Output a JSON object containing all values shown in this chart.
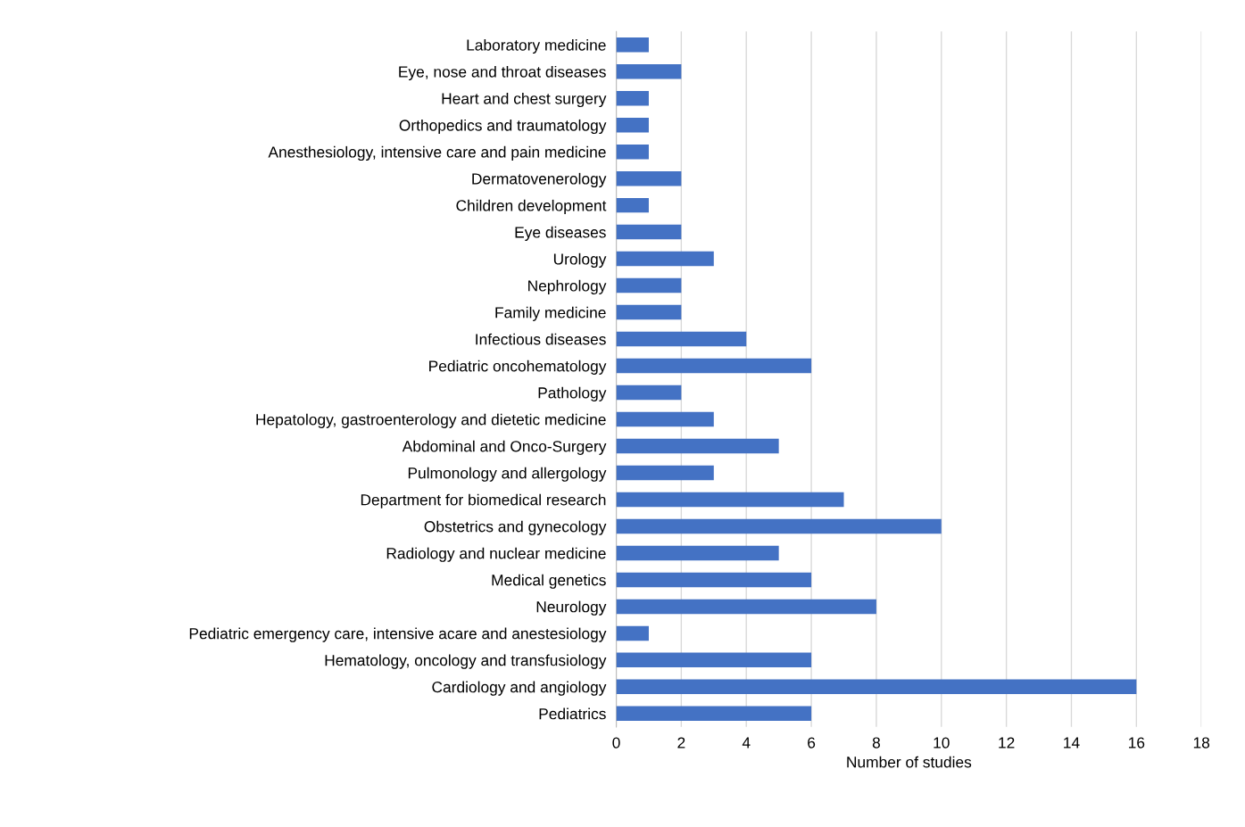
{
  "chart_data": {
    "type": "bar",
    "orientation": "horizontal",
    "xlabel": "Number of studies",
    "categories": [
      "Laboratory medicine",
      "Eye, nose and throat diseases",
      "Heart and chest surgery",
      "Orthopedics and traumatology",
      "Anesthesiology, intensive care and pain medicine",
      "Dermatovenerology",
      "Children development",
      "Eye diseases",
      "Urology",
      "Nephrology",
      "Family medicine",
      "Infectious diseases",
      "Pediatric oncohematology",
      "Pathology",
      "Hepatology, gastroenterology and dietetic medicine",
      "Abdominal and Onco-Surgery",
      "Pulmonology and allergology",
      "Department for biomedical research",
      "Obstetrics and gynecology",
      "Radiology and nuclear medicine",
      "Medical genetics",
      "Neurology",
      "Pediatric emergency care, intensive acare and anestesiology",
      "Hematology, oncology and transfusiology",
      "Cardiology and angiology",
      "Pediatrics"
    ],
    "values": [
      1,
      2,
      1,
      1,
      1,
      2,
      1,
      2,
      3,
      2,
      2,
      4,
      6,
      2,
      3,
      5,
      3,
      7,
      10,
      5,
      6,
      8,
      1,
      6,
      16,
      6
    ],
    "color": "#4472c4",
    "xlim": [
      0,
      18
    ],
    "xticks": [
      0,
      2,
      4,
      6,
      8,
      10,
      12,
      14,
      16,
      18
    ],
    "grid": "x"
  }
}
